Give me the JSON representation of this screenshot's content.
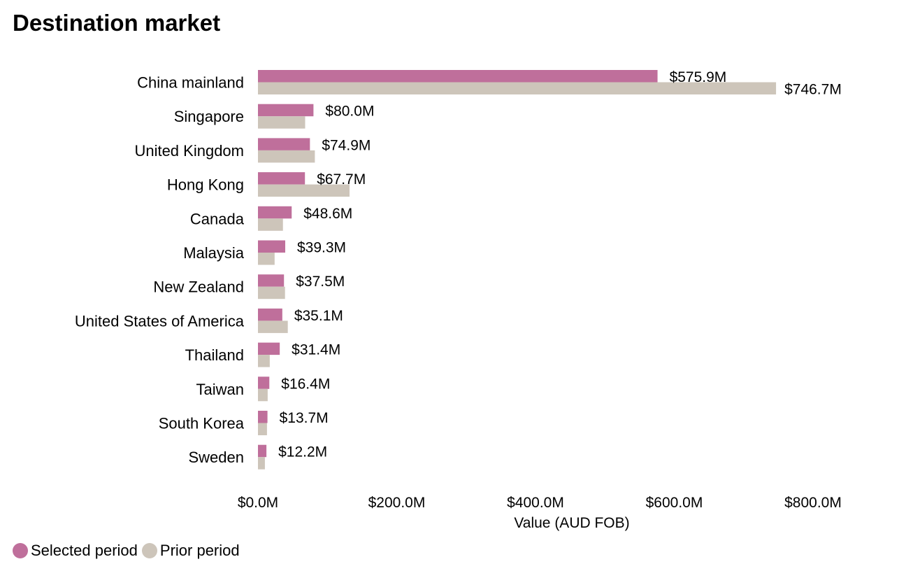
{
  "chart_data": {
    "type": "bar",
    "orientation": "horizontal",
    "title": "Destination market",
    "xlabel": "Value (AUD FOB)",
    "ylabel": "",
    "xlim": [
      0,
      800
    ],
    "x_ticks": [
      0,
      200,
      400,
      600,
      800
    ],
    "x_tick_labels": [
      "$0.0M",
      "$200.0M",
      "$400.0M",
      "$600.0M",
      "$800.0M"
    ],
    "categories": [
      "China mainland",
      "Singapore",
      "United Kingdom",
      "Hong Kong",
      "Canada",
      "Malaysia",
      "New Zealand",
      "United States of America",
      "Thailand",
      "Taiwan",
      "South Korea",
      "Sweden"
    ],
    "series": [
      {
        "name": "Selected period",
        "color": "#bf6f9b",
        "values": [
          575.9,
          80.0,
          74.9,
          67.7,
          48.6,
          39.3,
          37.5,
          35.1,
          31.4,
          16.4,
          13.7,
          12.2
        ],
        "data_labels": [
          "$575.9M",
          "$80.0M",
          "$74.9M",
          "$67.7M",
          "$48.6M",
          "$39.3M",
          "$37.5M",
          "$35.1M",
          "$31.4M",
          "$16.4M",
          "$13.7M",
          "$12.2M"
        ]
      },
      {
        "name": "Prior period",
        "color": "#cdc5ba",
        "values": [
          746.7,
          68,
          82,
          132,
          36,
          24,
          39,
          43,
          17,
          14,
          13,
          10
        ],
        "data_labels": [
          "$746.7M",
          "",
          "",
          "",
          "",
          "",
          "",
          "",
          "",
          "",
          "",
          ""
        ]
      }
    ],
    "legend_position": "bottom-left",
    "grid": false
  }
}
